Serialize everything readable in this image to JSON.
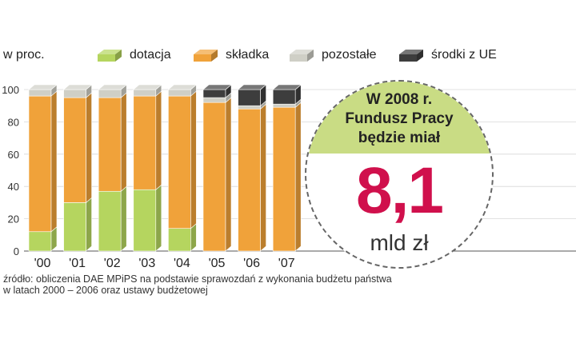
{
  "unit_label": "w proc.",
  "legend": [
    {
      "label": "dotacja",
      "color": "#b5d55f"
    },
    {
      "label": "składka",
      "color": "#f0a23a"
    },
    {
      "label": "pozostałe",
      "color": "#cfcfc6"
    },
    {
      "label": "środki z UE",
      "color": "#3d3d3d"
    }
  ],
  "chart_data": {
    "type": "bar",
    "stacked": true,
    "categories": [
      "'00",
      "'01",
      "'02",
      "'03",
      "'04",
      "'05",
      "'06",
      "'07"
    ],
    "series": [
      {
        "name": "dotacja",
        "color": "#b5d55f",
        "values": [
          12,
          30,
          37,
          38,
          14,
          0,
          0,
          0
        ]
      },
      {
        "name": "składka",
        "color": "#f0a23a",
        "values": [
          84,
          65,
          58,
          58,
          82,
          92,
          88,
          89
        ]
      },
      {
        "name": "pozostałe",
        "color": "#cfcfc6",
        "values": [
          4,
          5,
          5,
          4,
          4,
          3,
          2,
          2
        ]
      },
      {
        "name": "środki z UE",
        "color": "#3d3d3d",
        "values": [
          0,
          0,
          0,
          0,
          0,
          5,
          10,
          9
        ]
      }
    ],
    "yticks": [
      0,
      20,
      40,
      60,
      80,
      100
    ],
    "ylim": [
      0,
      100
    ],
    "ylabel": "w proc.",
    "grid": true,
    "legend_position": "top"
  },
  "source": {
    "line1": "źródło: obliczenia DAE MPiPS na podstawie sprawozdań z wykonania budżetu państwa",
    "line2": "w latach 2000 – 2006 oraz ustawy budżetowej"
  },
  "callout": {
    "line1": "W 2008 r.",
    "line2": "Fundusz Pracy",
    "line3": "będzie miał",
    "value": "8,1",
    "unit": "mld zł",
    "top_color": "#c9dc84",
    "value_color": "#d0104c"
  }
}
